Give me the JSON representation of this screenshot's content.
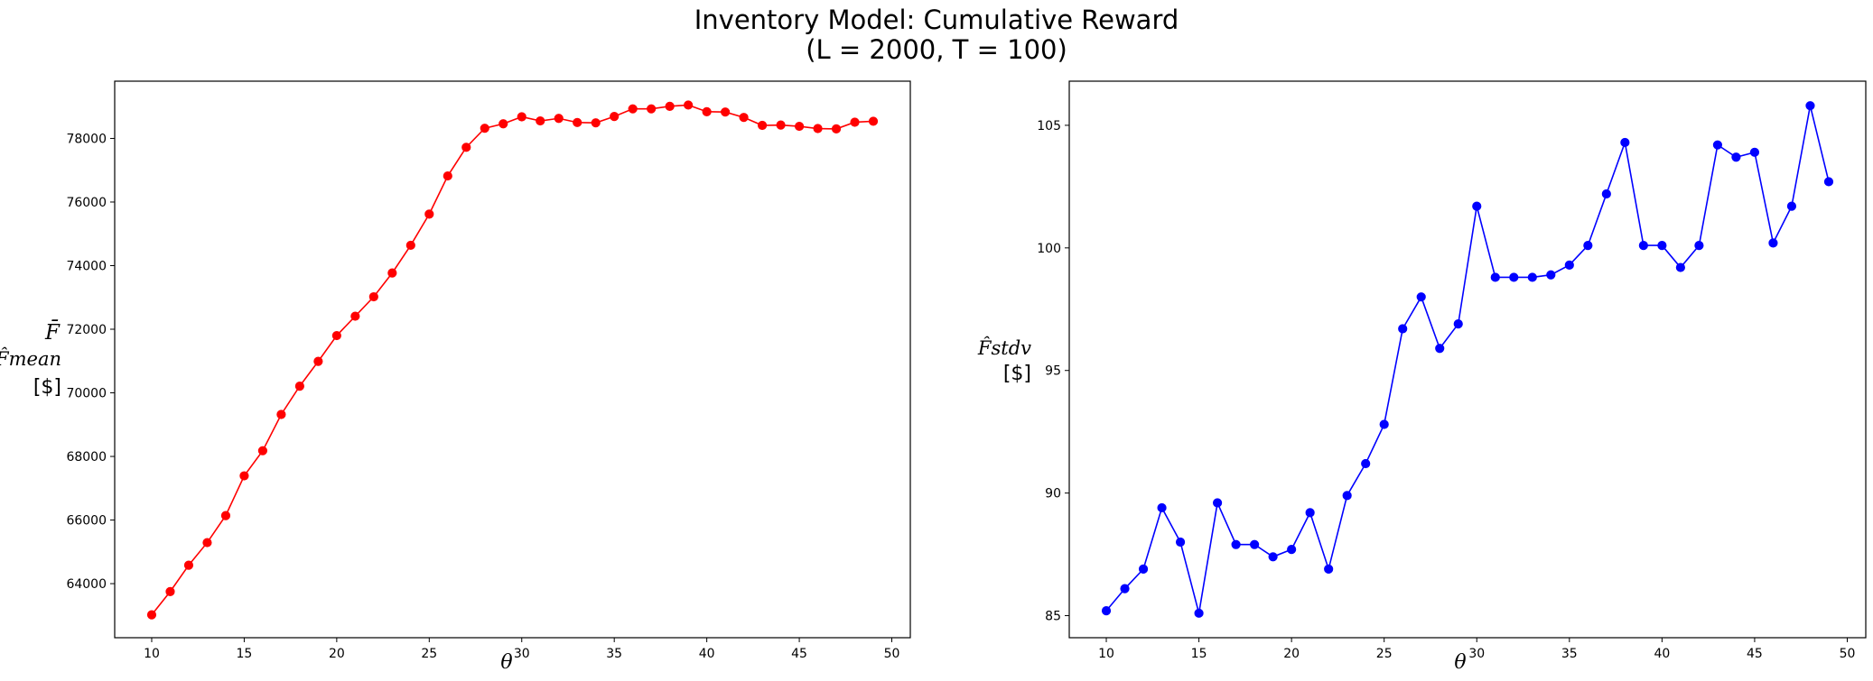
{
  "figure": {
    "title_line1": "Inventory Model: Cumulative Reward",
    "title_line2": "(L = 2000, T = 100)"
  },
  "chart_data": [
    {
      "type": "line",
      "title": "",
      "xlabel": "θ",
      "ylabel_lines": [
        "F̄",
        "F̂mean",
        "[$]"
      ],
      "color": "#ff0000",
      "marker": "circle",
      "x": [
        10,
        11,
        12,
        13,
        14,
        15,
        16,
        17,
        18,
        19,
        20,
        21,
        22,
        23,
        24,
        25,
        26,
        27,
        28,
        29,
        30,
        31,
        32,
        33,
        34,
        35,
        36,
        37,
        38,
        39,
        40,
        41,
        42,
        43,
        44,
        45,
        46,
        47,
        48,
        49
      ],
      "values": [
        63020,
        63750,
        64580,
        65290,
        66140,
        67390,
        68180,
        69320,
        70210,
        70990,
        71800,
        72410,
        73020,
        73770,
        74640,
        75620,
        76820,
        77720,
        78320,
        78460,
        78680,
        78550,
        78630,
        78500,
        78490,
        78690,
        78930,
        78930,
        79010,
        79050,
        78840,
        78830,
        78660,
        78410,
        78420,
        78380,
        78310,
        78300,
        78510,
        78540
      ],
      "xlim": [
        8,
        51
      ],
      "ylim": [
        62300,
        79800
      ],
      "xticks": [
        10,
        15,
        20,
        25,
        30,
        35,
        40,
        45,
        50
      ],
      "yticks": [
        64000,
        66000,
        68000,
        70000,
        72000,
        74000,
        76000,
        78000
      ],
      "grid": false
    },
    {
      "type": "line",
      "title": "",
      "xlabel": "θ",
      "ylabel_lines": [
        "F̂stdv",
        "[$]"
      ],
      "color": "#0000ff",
      "marker": "circle",
      "x": [
        10,
        11,
        12,
        13,
        14,
        15,
        16,
        17,
        18,
        19,
        20,
        21,
        22,
        23,
        24,
        25,
        26,
        27,
        28,
        29,
        30,
        31,
        32,
        33,
        34,
        35,
        36,
        37,
        38,
        39,
        40,
        41,
        42,
        43,
        44,
        45,
        46,
        47,
        48,
        49
      ],
      "values": [
        85.2,
        86.1,
        86.9,
        89.4,
        88.0,
        85.1,
        89.6,
        87.9,
        87.9,
        87.4,
        87.7,
        89.2,
        86.9,
        89.9,
        91.2,
        92.8,
        96.7,
        98.0,
        95.9,
        96.9,
        101.7,
        98.8,
        98.8,
        98.8,
        98.9,
        99.3,
        100.1,
        102.2,
        104.3,
        100.1,
        100.1,
        99.2,
        100.1,
        104.2,
        103.7,
        103.9,
        100.2,
        101.7,
        105.8,
        102.7
      ],
      "xlim": [
        8,
        51
      ],
      "ylim": [
        84.1,
        106.8
      ],
      "xticks": [
        10,
        15,
        20,
        25,
        30,
        35,
        40,
        45,
        50
      ],
      "yticks": [
        85,
        90,
        95,
        100,
        105
      ],
      "grid": false
    }
  ]
}
